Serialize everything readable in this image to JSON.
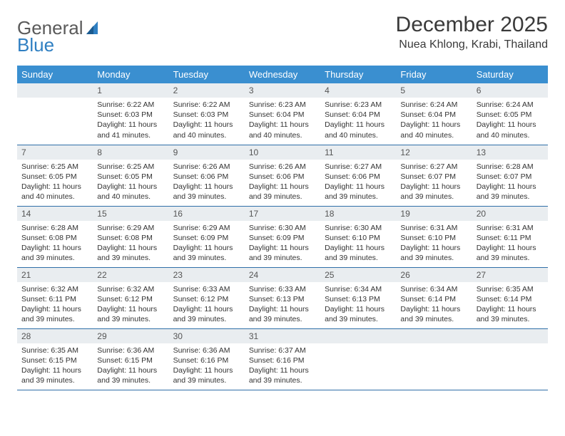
{
  "brand": {
    "part1": "General",
    "part2": "Blue"
  },
  "title": "December 2025",
  "location": "Nuea Khlong, Krabi, Thailand",
  "colors": {
    "header_bg": "#3a8fd0",
    "header_text": "#ffffff",
    "daynum_bg": "#e9edf0",
    "row_border": "#2f6fa8",
    "page_bg": "#ffffff",
    "logo_gray": "#5a5a5a",
    "logo_blue": "#2f7fc2"
  },
  "weekdays": [
    "Sunday",
    "Monday",
    "Tuesday",
    "Wednesday",
    "Thursday",
    "Friday",
    "Saturday"
  ],
  "first_weekday_index": 1,
  "days": [
    {
      "n": 1,
      "sunrise": "6:22 AM",
      "sunset": "6:03 PM",
      "daylight": "11 hours and 41 minutes."
    },
    {
      "n": 2,
      "sunrise": "6:22 AM",
      "sunset": "6:03 PM",
      "daylight": "11 hours and 40 minutes."
    },
    {
      "n": 3,
      "sunrise": "6:23 AM",
      "sunset": "6:04 PM",
      "daylight": "11 hours and 40 minutes."
    },
    {
      "n": 4,
      "sunrise": "6:23 AM",
      "sunset": "6:04 PM",
      "daylight": "11 hours and 40 minutes."
    },
    {
      "n": 5,
      "sunrise": "6:24 AM",
      "sunset": "6:04 PM",
      "daylight": "11 hours and 40 minutes."
    },
    {
      "n": 6,
      "sunrise": "6:24 AM",
      "sunset": "6:05 PM",
      "daylight": "11 hours and 40 minutes."
    },
    {
      "n": 7,
      "sunrise": "6:25 AM",
      "sunset": "6:05 PM",
      "daylight": "11 hours and 40 minutes."
    },
    {
      "n": 8,
      "sunrise": "6:25 AM",
      "sunset": "6:05 PM",
      "daylight": "11 hours and 40 minutes."
    },
    {
      "n": 9,
      "sunrise": "6:26 AM",
      "sunset": "6:06 PM",
      "daylight": "11 hours and 39 minutes."
    },
    {
      "n": 10,
      "sunrise": "6:26 AM",
      "sunset": "6:06 PM",
      "daylight": "11 hours and 39 minutes."
    },
    {
      "n": 11,
      "sunrise": "6:27 AM",
      "sunset": "6:06 PM",
      "daylight": "11 hours and 39 minutes."
    },
    {
      "n": 12,
      "sunrise": "6:27 AM",
      "sunset": "6:07 PM",
      "daylight": "11 hours and 39 minutes."
    },
    {
      "n": 13,
      "sunrise": "6:28 AM",
      "sunset": "6:07 PM",
      "daylight": "11 hours and 39 minutes."
    },
    {
      "n": 14,
      "sunrise": "6:28 AM",
      "sunset": "6:08 PM",
      "daylight": "11 hours and 39 minutes."
    },
    {
      "n": 15,
      "sunrise": "6:29 AM",
      "sunset": "6:08 PM",
      "daylight": "11 hours and 39 minutes."
    },
    {
      "n": 16,
      "sunrise": "6:29 AM",
      "sunset": "6:09 PM",
      "daylight": "11 hours and 39 minutes."
    },
    {
      "n": 17,
      "sunrise": "6:30 AM",
      "sunset": "6:09 PM",
      "daylight": "11 hours and 39 minutes."
    },
    {
      "n": 18,
      "sunrise": "6:30 AM",
      "sunset": "6:10 PM",
      "daylight": "11 hours and 39 minutes."
    },
    {
      "n": 19,
      "sunrise": "6:31 AM",
      "sunset": "6:10 PM",
      "daylight": "11 hours and 39 minutes."
    },
    {
      "n": 20,
      "sunrise": "6:31 AM",
      "sunset": "6:11 PM",
      "daylight": "11 hours and 39 minutes."
    },
    {
      "n": 21,
      "sunrise": "6:32 AM",
      "sunset": "6:11 PM",
      "daylight": "11 hours and 39 minutes."
    },
    {
      "n": 22,
      "sunrise": "6:32 AM",
      "sunset": "6:12 PM",
      "daylight": "11 hours and 39 minutes."
    },
    {
      "n": 23,
      "sunrise": "6:33 AM",
      "sunset": "6:12 PM",
      "daylight": "11 hours and 39 minutes."
    },
    {
      "n": 24,
      "sunrise": "6:33 AM",
      "sunset": "6:13 PM",
      "daylight": "11 hours and 39 minutes."
    },
    {
      "n": 25,
      "sunrise": "6:34 AM",
      "sunset": "6:13 PM",
      "daylight": "11 hours and 39 minutes."
    },
    {
      "n": 26,
      "sunrise": "6:34 AM",
      "sunset": "6:14 PM",
      "daylight": "11 hours and 39 minutes."
    },
    {
      "n": 27,
      "sunrise": "6:35 AM",
      "sunset": "6:14 PM",
      "daylight": "11 hours and 39 minutes."
    },
    {
      "n": 28,
      "sunrise": "6:35 AM",
      "sunset": "6:15 PM",
      "daylight": "11 hours and 39 minutes."
    },
    {
      "n": 29,
      "sunrise": "6:36 AM",
      "sunset": "6:15 PM",
      "daylight": "11 hours and 39 minutes."
    },
    {
      "n": 30,
      "sunrise": "6:36 AM",
      "sunset": "6:16 PM",
      "daylight": "11 hours and 39 minutes."
    },
    {
      "n": 31,
      "sunrise": "6:37 AM",
      "sunset": "6:16 PM",
      "daylight": "11 hours and 39 minutes."
    }
  ],
  "labels": {
    "sunrise": "Sunrise:",
    "sunset": "Sunset:",
    "daylight": "Daylight:"
  }
}
